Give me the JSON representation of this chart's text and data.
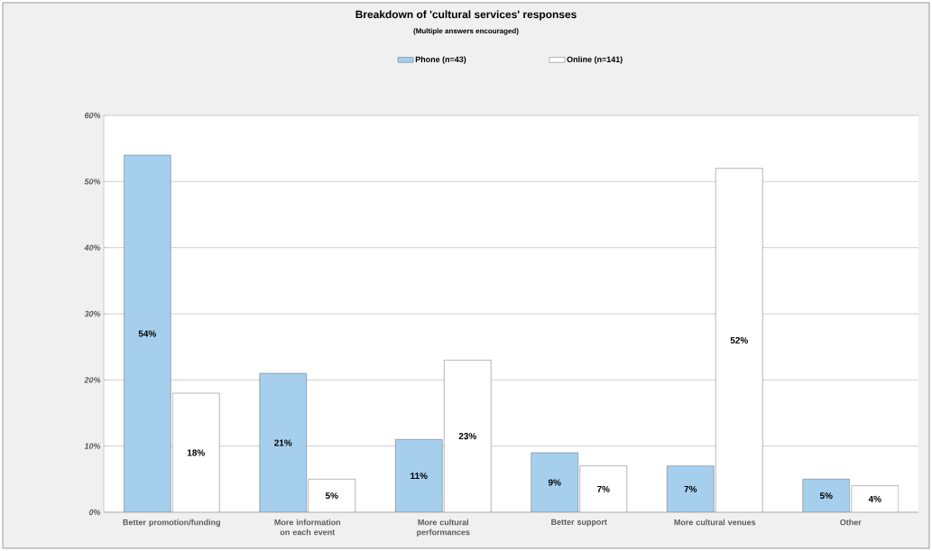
{
  "chart_data": {
    "type": "bar",
    "title": "Breakdown of 'cultural services' responses",
    "subtitle": "(Multiple answers encouraged)",
    "categories": [
      "Better promotion/funding",
      "More information on each event",
      "More cultural performances",
      "Better support",
      "More cultural venues",
      "Other"
    ],
    "series": [
      {
        "name": "Phone (n=43)",
        "color": "#a6cfee",
        "values": [
          54,
          21,
          11,
          9,
          7,
          5
        ],
        "value_labels": [
          "54%",
          "21%",
          "11%",
          "9%",
          "7%",
          "5%"
        ]
      },
      {
        "name": "Online (n=141)",
        "color": "#ffffff",
        "values": [
          18,
          5,
          23,
          7,
          52,
          4
        ],
        "value_labels": [
          "18%",
          "5%",
          "23%",
          "7%",
          "52%",
          "4%"
        ]
      }
    ],
    "ylim": [
      0,
      60
    ],
    "yticks": [
      {
        "value": 0,
        "label": "0%"
      },
      {
        "value": 10,
        "label": "10%"
      },
      {
        "value": 20,
        "label": "20%"
      },
      {
        "value": 30,
        "label": "30%"
      },
      {
        "value": 40,
        "label": "40%"
      },
      {
        "value": 50,
        "label": "50%"
      },
      {
        "value": 60,
        "label": "60%"
      }
    ],
    "grid": "y",
    "legend": "top"
  }
}
